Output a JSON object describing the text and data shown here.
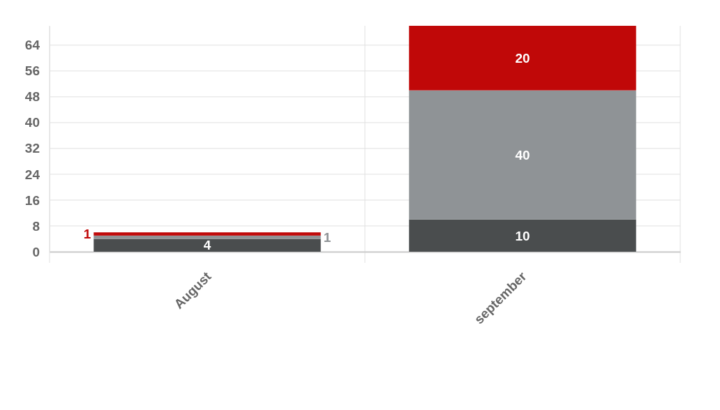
{
  "chart_data": {
    "type": "bar",
    "stacked": true,
    "categories": [
      "August",
      "september"
    ],
    "series": [
      {
        "color": "#4a4d4e",
        "values": [
          4,
          10
        ]
      },
      {
        "color": "#8f9396",
        "values": [
          1,
          40
        ]
      },
      {
        "color": "#c00808",
        "values": [
          1,
          20
        ]
      }
    ],
    "ylim": [
      0,
      70
    ],
    "yticks": [
      0,
      8,
      16,
      24,
      32,
      40,
      48,
      56,
      64
    ],
    "grid": true,
    "data_labels": true
  }
}
